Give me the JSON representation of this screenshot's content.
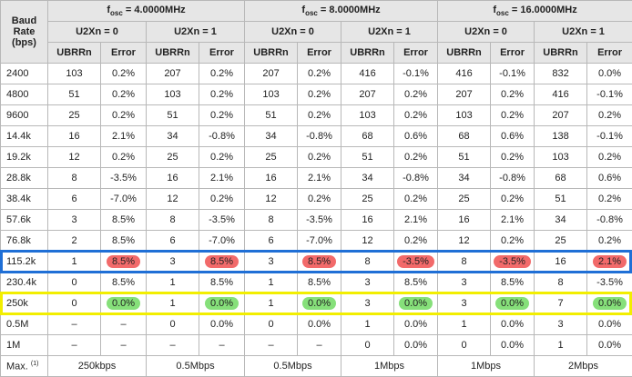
{
  "header": {
    "baud_rate": [
      "Baud",
      "Rate",
      "(bps)"
    ],
    "groups": [
      {
        "f": "f",
        "sub": "osc",
        "freq": "= 4.0000MHz",
        "modes": [
          "U2Xn = 0",
          "U2Xn = 1"
        ]
      },
      {
        "f": "f",
        "sub": "osc",
        "freq": "= 8.0000MHz",
        "modes": [
          "U2Xn = 0",
          "U2Xn = 1"
        ]
      },
      {
        "f": "f",
        "sub": "osc",
        "freq": "= 16.0000MHz",
        "modes": [
          "U2Xn = 0",
          "U2Xn = 1"
        ]
      }
    ],
    "columns": [
      "UBRRn",
      "Error"
    ]
  },
  "rows": [
    {
      "baud": "2400",
      "cells": [
        "103",
        "0.2%",
        "207",
        "0.2%",
        "207",
        "0.2%",
        "416",
        "-0.1%",
        "416",
        "-0.1%",
        "832",
        "0.0%"
      ]
    },
    {
      "baud": "4800",
      "cells": [
        "51",
        "0.2%",
        "103",
        "0.2%",
        "103",
        "0.2%",
        "207",
        "0.2%",
        "207",
        "0.2%",
        "416",
        "-0.1%"
      ]
    },
    {
      "baud": "9600",
      "cells": [
        "25",
        "0.2%",
        "51",
        "0.2%",
        "51",
        "0.2%",
        "103",
        "0.2%",
        "103",
        "0.2%",
        "207",
        "0.2%"
      ]
    },
    {
      "baud": "14.4k",
      "cells": [
        "16",
        "2.1%",
        "34",
        "-0.8%",
        "34",
        "-0.8%",
        "68",
        "0.6%",
        "68",
        "0.6%",
        "138",
        "-0.1%"
      ]
    },
    {
      "baud": "19.2k",
      "cells": [
        "12",
        "0.2%",
        "25",
        "0.2%",
        "25",
        "0.2%",
        "51",
        "0.2%",
        "51",
        "0.2%",
        "103",
        "0.2%"
      ]
    },
    {
      "baud": "28.8k",
      "cells": [
        "8",
        "-3.5%",
        "16",
        "2.1%",
        "16",
        "2.1%",
        "34",
        "-0.8%",
        "34",
        "-0.8%",
        "68",
        "0.6%"
      ]
    },
    {
      "baud": "38.4k",
      "cells": [
        "6",
        "-7.0%",
        "12",
        "0.2%",
        "12",
        "0.2%",
        "25",
        "0.2%",
        "25",
        "0.2%",
        "51",
        "0.2%"
      ]
    },
    {
      "baud": "57.6k",
      "cells": [
        "3",
        "8.5%",
        "8",
        "-3.5%",
        "8",
        "-3.5%",
        "16",
        "2.1%",
        "16",
        "2.1%",
        "34",
        "-0.8%"
      ]
    },
    {
      "baud": "76.8k",
      "cells": [
        "2",
        "8.5%",
        "6",
        "-7.0%",
        "6",
        "-7.0%",
        "12",
        "0.2%",
        "12",
        "0.2%",
        "25",
        "0.2%"
      ]
    },
    {
      "baud": "115.2k",
      "cells": [
        "1",
        "8.5%",
        "3",
        "8.5%",
        "3",
        "8.5%",
        "8",
        "-3.5%",
        "8",
        "-3.5%",
        "16",
        "2.1%"
      ]
    },
    {
      "baud": "230.4k",
      "cells": [
        "0",
        "8.5%",
        "1",
        "8.5%",
        "1",
        "8.5%",
        "3",
        "8.5%",
        "3",
        "8.5%",
        "8",
        "-3.5%"
      ]
    },
    {
      "baud": "250k",
      "cells": [
        "0",
        "0.0%",
        "1",
        "0.0%",
        "1",
        "0.0%",
        "3",
        "0.0%",
        "3",
        "0.0%",
        "7",
        "0.0%"
      ]
    },
    {
      "baud": "0.5M",
      "cells": [
        "–",
        "–",
        "0",
        "0.0%",
        "0",
        "0.0%",
        "1",
        "0.0%",
        "1",
        "0.0%",
        "3",
        "0.0%"
      ]
    },
    {
      "baud": "1M",
      "cells": [
        "–",
        "–",
        "–",
        "–",
        "–",
        "–",
        "0",
        "0.0%",
        "0",
        "0.0%",
        "1",
        "0.0%"
      ]
    }
  ],
  "max_row": {
    "label": "Max.",
    "note": "(1)",
    "cells": [
      "250kbps",
      "0.5Mbps",
      "0.5Mbps",
      "1Mbps",
      "1Mbps",
      "2Mbps"
    ]
  }
}
